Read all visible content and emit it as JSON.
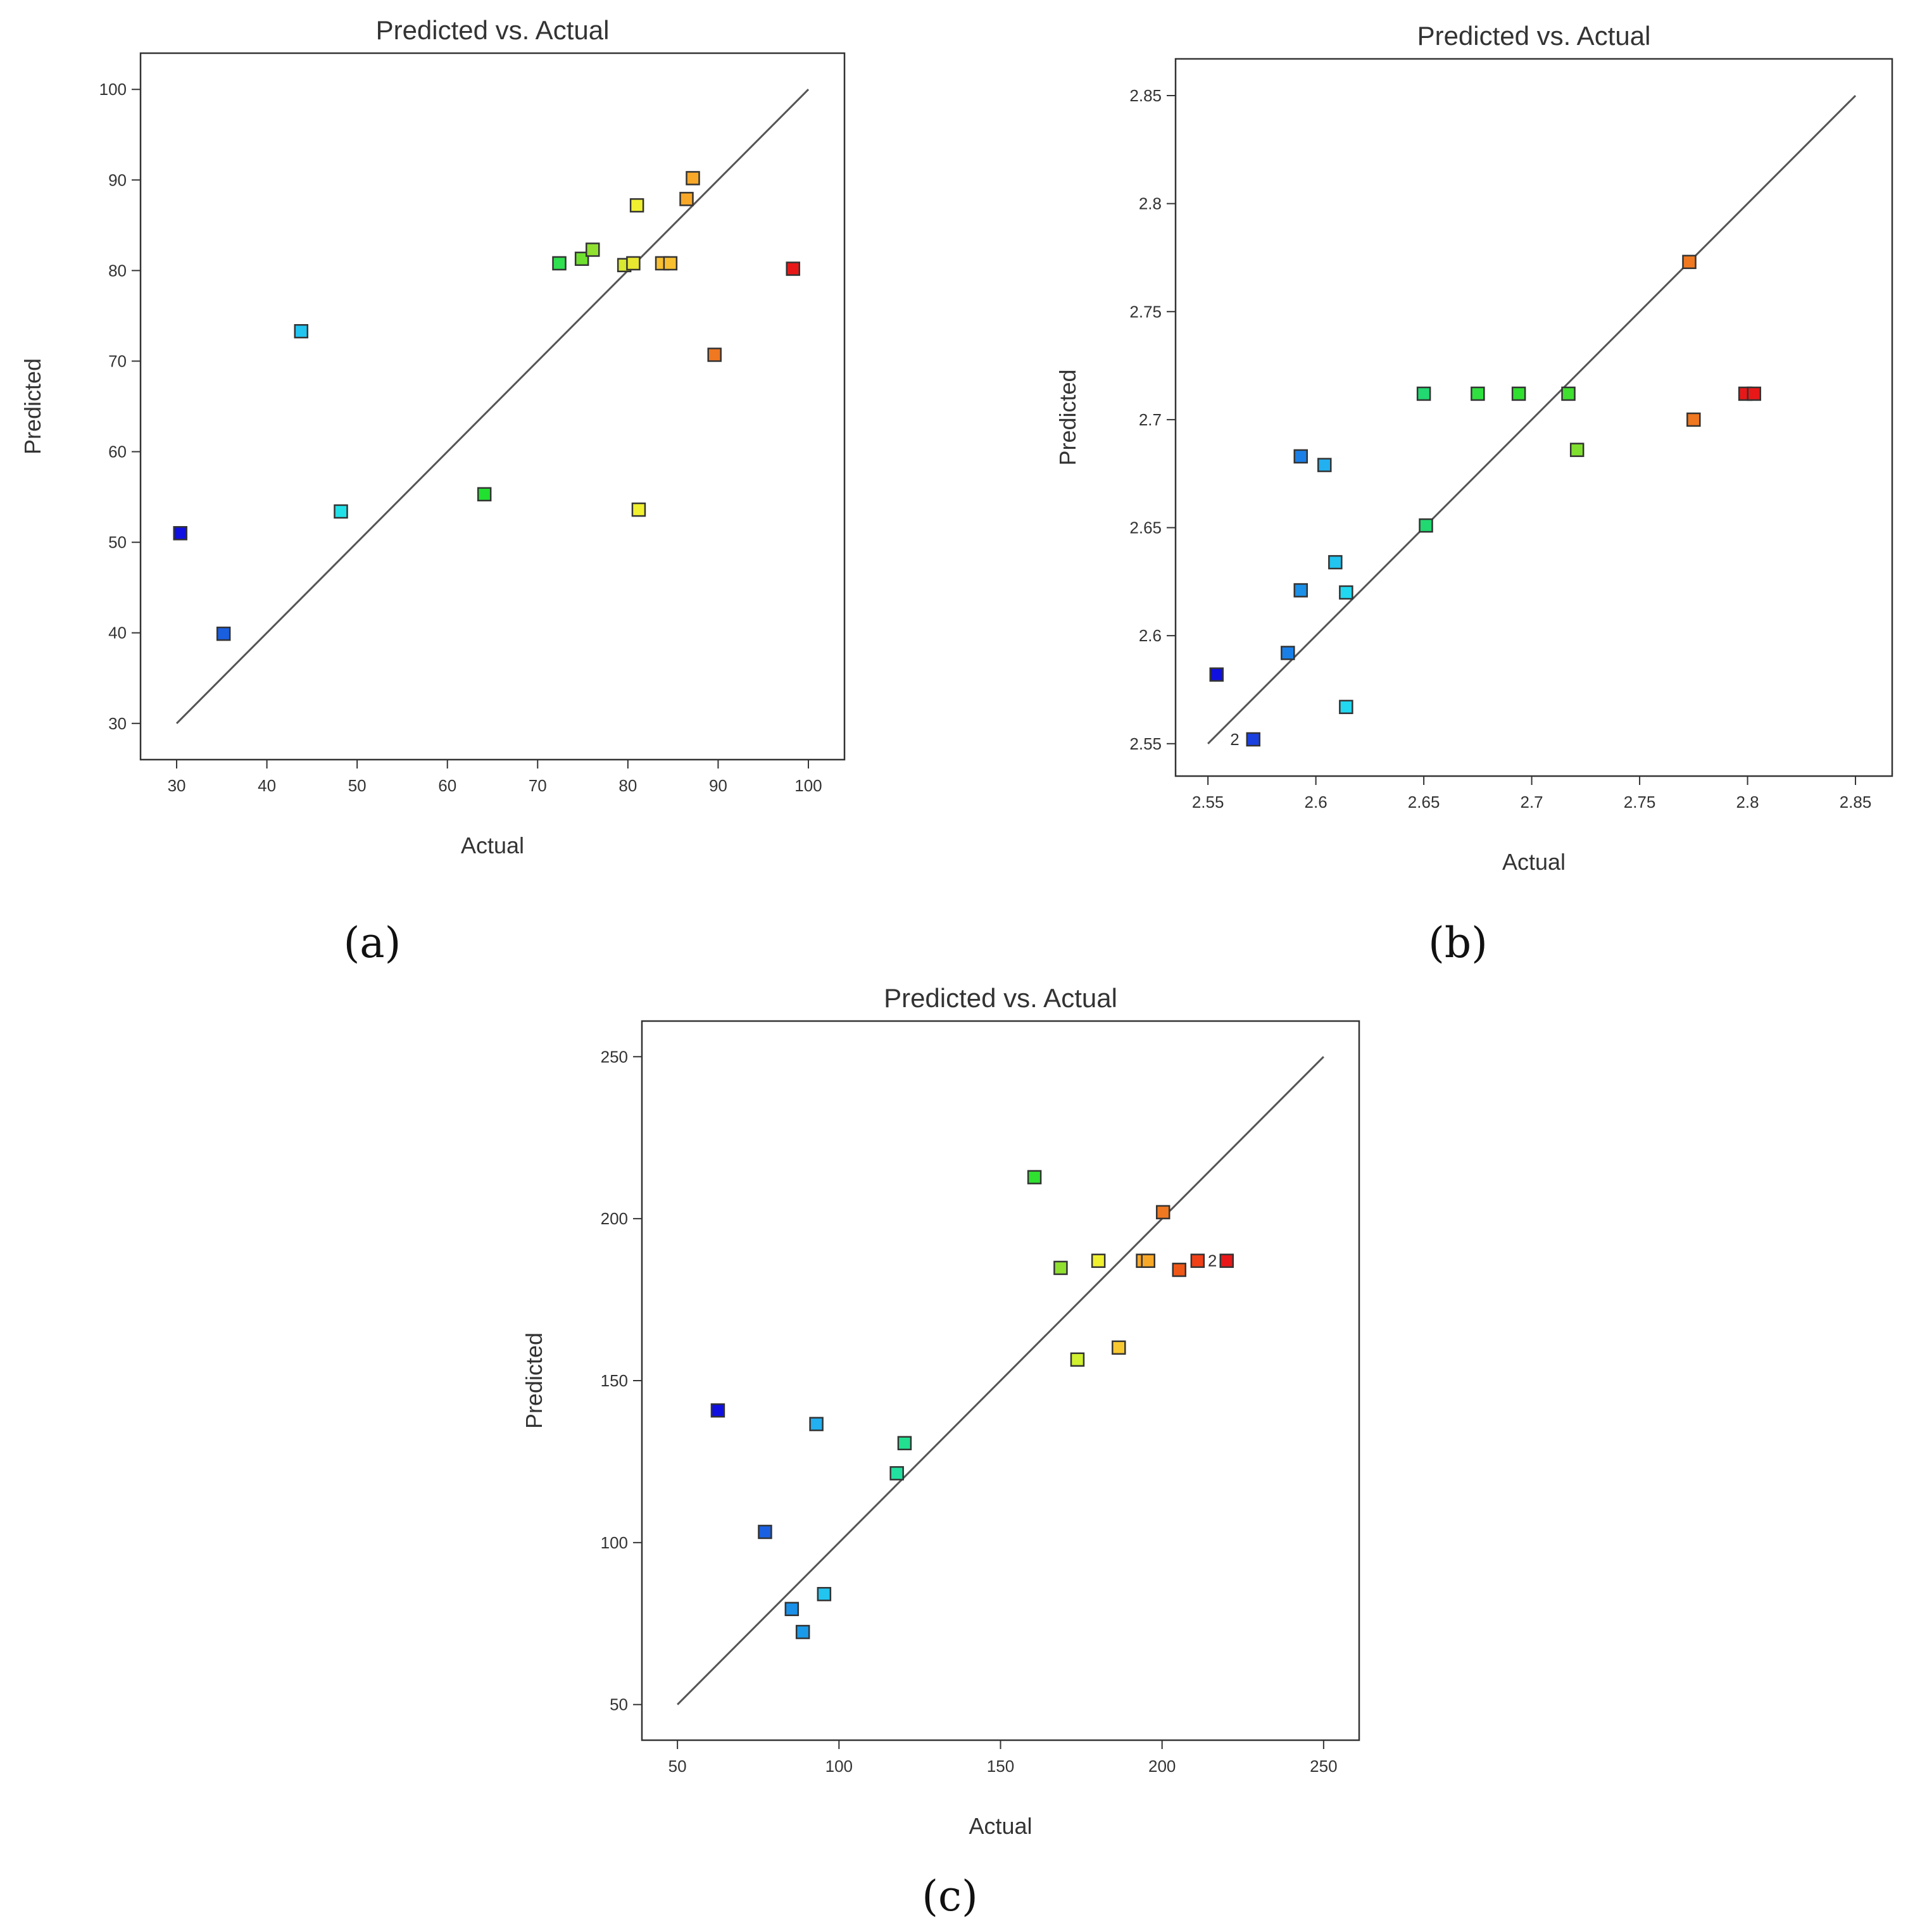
{
  "chart_data": [
    {
      "id": "a",
      "type": "scatter",
      "title": "Predicted vs. Actual",
      "xlabel": "Actual",
      "ylabel": "Predicted",
      "caption": "(a)",
      "xlim": [
        26,
        104
      ],
      "ylim": [
        26,
        104
      ],
      "xticks": [
        30,
        40,
        50,
        60,
        70,
        80,
        90,
        100
      ],
      "yticks": [
        30,
        40,
        50,
        60,
        70,
        80,
        90,
        100
      ],
      "xtick_labels": [
        "30",
        "40",
        "50",
        "60",
        "70",
        "80",
        "90",
        "100"
      ],
      "ytick_labels": [
        "30",
        "40",
        "50",
        "60",
        "70",
        "80",
        "90",
        "100"
      ],
      "reference_line": [
        [
          30,
          30
        ],
        [
          100,
          100
        ]
      ],
      "points": [
        {
          "x": 30.4,
          "y": 51.0,
          "color": "#1010e0"
        },
        {
          "x": 35.2,
          "y": 39.9,
          "color": "#1a5fe0"
        },
        {
          "x": 43.8,
          "y": 73.3,
          "color": "#22c4f0"
        },
        {
          "x": 48.2,
          "y": 53.4,
          "color": "#22e0e8"
        },
        {
          "x": 64.1,
          "y": 55.3,
          "color": "#22e030"
        },
        {
          "x": 72.4,
          "y": 80.8,
          "color": "#30e050"
        },
        {
          "x": 74.9,
          "y": 81.3,
          "color": "#70e030"
        },
        {
          "x": 76.1,
          "y": 82.3,
          "color": "#90e030"
        },
        {
          "x": 79.6,
          "y": 80.6,
          "color": "#d8e830"
        },
        {
          "x": 80.6,
          "y": 80.8,
          "color": "#e8e830"
        },
        {
          "x": 81.0,
          "y": 87.2,
          "color": "#f0f030"
        },
        {
          "x": 81.2,
          "y": 53.6,
          "color": "#f0f030"
        },
        {
          "x": 83.8,
          "y": 80.8,
          "color": "#f8c030"
        },
        {
          "x": 84.7,
          "y": 80.8,
          "color": "#f8c030"
        },
        {
          "x": 86.5,
          "y": 87.9,
          "color": "#f8a828"
        },
        {
          "x": 87.2,
          "y": 90.2,
          "color": "#f8a828"
        },
        {
          "x": 89.6,
          "y": 70.7,
          "color": "#f07820"
        },
        {
          "x": 98.3,
          "y": 80.2,
          "color": "#e81818"
        }
      ],
      "point_labels": []
    },
    {
      "id": "b",
      "type": "scatter",
      "title": "Predicted vs. Actual",
      "xlabel": "Actual",
      "ylabel": "Predicted",
      "caption": "(b)",
      "xlim": [
        2.535,
        2.867
      ],
      "ylim": [
        2.535,
        2.867
      ],
      "xticks": [
        2.55,
        2.6,
        2.65,
        2.7,
        2.75,
        2.8,
        2.85
      ],
      "yticks": [
        2.55,
        2.6,
        2.65,
        2.7,
        2.75,
        2.8,
        2.85
      ],
      "xtick_labels": [
        "2.55",
        "2.6",
        "2.65",
        "2.7",
        "2.75",
        "2.8",
        "2.85"
      ],
      "ytick_labels": [
        "2.55",
        "2.6",
        "2.65",
        "2.7",
        "2.75",
        "2.8",
        "2.85"
      ],
      "reference_line": [
        [
          2.55,
          2.55
        ],
        [
          2.85,
          2.85
        ]
      ],
      "points": [
        {
          "x": 2.554,
          "y": 2.582,
          "color": "#1010e0"
        },
        {
          "x": 2.571,
          "y": 2.552,
          "color": "#1a40e0"
        },
        {
          "x": 2.587,
          "y": 2.592,
          "color": "#1a80e8"
        },
        {
          "x": 2.593,
          "y": 2.683,
          "color": "#1a80e8"
        },
        {
          "x": 2.593,
          "y": 2.621,
          "color": "#1a90e8"
        },
        {
          "x": 2.604,
          "y": 2.679,
          "color": "#22b0f0"
        },
        {
          "x": 2.609,
          "y": 2.634,
          "color": "#22c4f0"
        },
        {
          "x": 2.614,
          "y": 2.62,
          "color": "#22d8f0"
        },
        {
          "x": 2.614,
          "y": 2.567,
          "color": "#22d8f0"
        },
        {
          "x": 2.65,
          "y": 2.712,
          "color": "#22d870"
        },
        {
          "x": 2.651,
          "y": 2.651,
          "color": "#22d870"
        },
        {
          "x": 2.675,
          "y": 2.712,
          "color": "#30e040"
        },
        {
          "x": 2.694,
          "y": 2.712,
          "color": "#30e030"
        },
        {
          "x": 2.717,
          "y": 2.712,
          "color": "#40e030"
        },
        {
          "x": 2.721,
          "y": 2.686,
          "color": "#80e030"
        },
        {
          "x": 2.773,
          "y": 2.773,
          "color": "#f07820"
        },
        {
          "x": 2.775,
          "y": 2.7,
          "color": "#f07820"
        },
        {
          "x": 2.799,
          "y": 2.712,
          "color": "#e81818"
        },
        {
          "x": 2.803,
          "y": 2.712,
          "color": "#e81818"
        }
      ],
      "point_labels": [
        {
          "x": 2.571,
          "y": 2.552,
          "text": "2"
        }
      ]
    },
    {
      "id": "c",
      "type": "scatter",
      "title": "Predicted vs. Actual",
      "xlabel": "Actual",
      "ylabel": "Predicted",
      "caption": "(c)",
      "xlim": [
        39,
        261
      ],
      "ylim": [
        39,
        261
      ],
      "xticks": [
        50,
        100,
        150,
        200,
        250
      ],
      "yticks": [
        50,
        100,
        150,
        200,
        250
      ],
      "xtick_labels": [
        "50",
        "100",
        "150",
        "200",
        "250"
      ],
      "ytick_labels": [
        "50",
        "100",
        "150",
        "200",
        "250"
      ],
      "reference_line": [
        [
          50,
          50
        ],
        [
          250,
          250
        ]
      ],
      "points": [
        {
          "x": 62.5,
          "y": 140.8,
          "color": "#1010e0"
        },
        {
          "x": 77.1,
          "y": 103.3,
          "color": "#1a60e0"
        },
        {
          "x": 85.4,
          "y": 79.5,
          "color": "#1a90e8"
        },
        {
          "x": 88.8,
          "y": 72.4,
          "color": "#1a9ae8"
        },
        {
          "x": 93.0,
          "y": 136.6,
          "color": "#22b0f0"
        },
        {
          "x": 95.4,
          "y": 84.1,
          "color": "#22c4f0"
        },
        {
          "x": 117.9,
          "y": 121.4,
          "color": "#22e0a0"
        },
        {
          "x": 120.3,
          "y": 130.7,
          "color": "#22e090"
        },
        {
          "x": 160.5,
          "y": 212.8,
          "color": "#30e030"
        },
        {
          "x": 168.6,
          "y": 184.8,
          "color": "#90e030"
        },
        {
          "x": 173.8,
          "y": 156.5,
          "color": "#d0f030"
        },
        {
          "x": 180.3,
          "y": 187.0,
          "color": "#f0f030"
        },
        {
          "x": 186.6,
          "y": 160.2,
          "color": "#f8c830"
        },
        {
          "x": 194.1,
          "y": 187.0,
          "color": "#f8a828"
        },
        {
          "x": 195.7,
          "y": 187.0,
          "color": "#f8a828"
        },
        {
          "x": 200.3,
          "y": 202.0,
          "color": "#f07820"
        },
        {
          "x": 205.3,
          "y": 184.2,
          "color": "#f05818"
        },
        {
          "x": 211.0,
          "y": 187.0,
          "color": "#f04018"
        },
        {
          "x": 220.0,
          "y": 187.0,
          "color": "#e81818"
        }
      ],
      "point_labels": [
        {
          "x": 211.0,
          "y": 187.0,
          "text": "2"
        }
      ]
    }
  ]
}
